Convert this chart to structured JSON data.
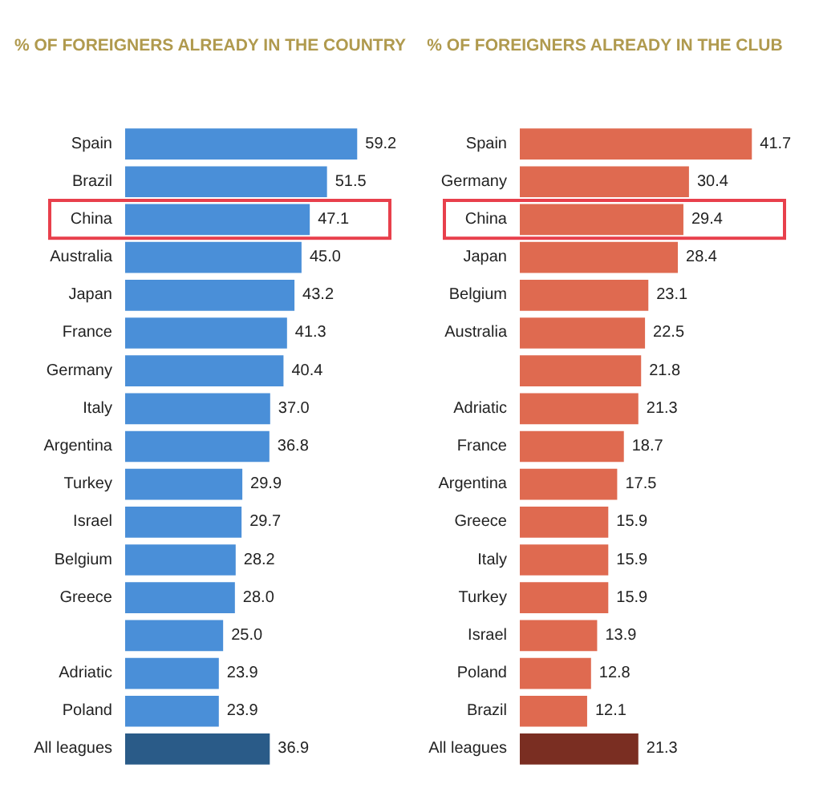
{
  "chart_data": [
    {
      "type": "bar",
      "orientation": "horizontal",
      "title": "% OF FOREIGNERS ALREADY IN THE COUNTRY",
      "categories": [
        "Spain",
        "Brazil",
        "China",
        "Australia",
        "Japan",
        "France",
        "Germany",
        "Italy",
        "Argentina",
        "Turkey",
        "Israel",
        "Belgium",
        "Greece",
        null,
        "Adriatic",
        "Poland",
        "All leagues"
      ],
      "values": [
        59.2,
        51.5,
        47.1,
        45.0,
        43.2,
        41.3,
        40.4,
        37.0,
        36.8,
        29.9,
        29.7,
        28.2,
        28.0,
        25.0,
        23.9,
        23.9,
        36.9
      ],
      "value_labels": [
        "59.2",
        "51.5",
        "47.1",
        "45.0",
        "43.2",
        "41.3",
        "40.4",
        "37.0",
        "36.8",
        "29.9",
        "29.7",
        "28.2",
        "28.0",
        "25.0",
        "23.9",
        "23.9",
        "36.9"
      ],
      "colors": [
        "#4a8fd8",
        "#4a8fd8",
        "#4a8fd8",
        "#4a8fd8",
        "#4a8fd8",
        "#4a8fd8",
        "#4a8fd8",
        "#4a8fd8",
        "#4a8fd8",
        "#4a8fd8",
        "#4a8fd8",
        "#4a8fd8",
        "#4a8fd8",
        "#4a8fd8",
        "#4a8fd8",
        "#4a8fd8",
        "#2a5b88"
      ],
      "tick_labels": "y"
    },
    {
      "type": "bar",
      "orientation": "horizontal",
      "title": "% OF FOREIGNERS ALREADY IN THE CLUB",
      "categories": [
        "Spain",
        "Germany",
        "China",
        "Japan",
        "Belgium",
        "Australia",
        null,
        "Adriatic",
        "France",
        "Argentina",
        "Greece",
        "Italy",
        "Turkey",
        "Israel",
        "Poland",
        "Brazil",
        "All leagues"
      ],
      "values": [
        41.7,
        30.4,
        29.4,
        28.4,
        23.1,
        22.5,
        21.8,
        21.3,
        18.7,
        17.5,
        15.9,
        15.9,
        15.9,
        13.9,
        12.8,
        12.1,
        21.3
      ],
      "value_labels": [
        "41.7",
        "30.4",
        "29.4",
        "28.4",
        "23.1",
        "22.5",
        "21.8",
        "21.3",
        "18.7",
        "17.5",
        "15.9",
        "15.9",
        "15.9",
        "13.9",
        "12.8",
        "12.1",
        "21.3"
      ],
      "colors": [
        "#df6a50",
        "#df6a50",
        "#df6a50",
        "#df6a50",
        "#df6a50",
        "#df6a50",
        "#df6a50",
        "#df6a50",
        "#df6a50",
        "#df6a50",
        "#df6a50",
        "#df6a50",
        "#df6a50",
        "#df6a50",
        "#df6a50",
        "#df6a50",
        "#7a2e22"
      ],
      "tick_labels": "y"
    }
  ]
}
